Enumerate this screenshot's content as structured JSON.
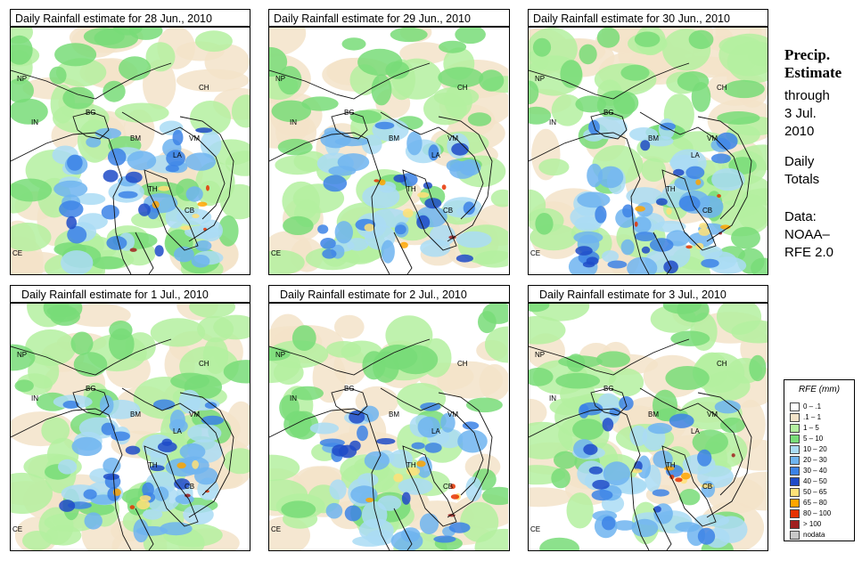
{
  "panels": [
    {
      "title": "Daily Rainfall estimate for  28 Jun., 2010",
      "rain_level": 0.55
    },
    {
      "title": "Daily Rainfall estimate for  29 Jun., 2010",
      "rain_level": 0.5
    },
    {
      "title": "Daily Rainfall estimate for  30 Jun., 2010",
      "rain_level": 0.8
    },
    {
      "title": "Daily Rainfall estimate for  1 Jul., 2010",
      "rain_level": 0.65
    },
    {
      "title": "Daily Rainfall estimate for  2 Jul., 2010",
      "rain_level": 0.45
    },
    {
      "title": "Daily Rainfall estimate for  3 Jul., 2010",
      "rain_level": 0.55
    }
  ],
  "country_labels": [
    "NP",
    "CH",
    "IN",
    "BG",
    "BM",
    "VM",
    "LA",
    "TH",
    "CB",
    "CE"
  ],
  "side_panel": {
    "heading_line1": "Precip.",
    "heading_line2": "Estimate",
    "through": "through",
    "date_line1": "3 Jul.",
    "date_line2": "2010",
    "daily_line1": "Daily",
    "daily_line2": "Totals",
    "data_line1": "Data:",
    "data_line2": "NOAA–",
    "data_line3": "RFE 2.0"
  },
  "legend": {
    "title": "RFE (mm)",
    "items": [
      {
        "label": "0 – .1",
        "color": "#ffffff"
      },
      {
        "label": ".1 – 1",
        "color": "#f3e3c9"
      },
      {
        "label": "1 – 5",
        "color": "#b4f0a0"
      },
      {
        "label": "5 – 10",
        "color": "#78dc78"
      },
      {
        "label": "10 – 20",
        "color": "#aadcf5"
      },
      {
        "label": "20 – 30",
        "color": "#6eb4f0"
      },
      {
        "label": "30 – 40",
        "color": "#3c82e6"
      },
      {
        "label": "40 – 50",
        "color": "#1e4bc8"
      },
      {
        "label": "50 – 65",
        "color": "#ffe178"
      },
      {
        "label": "65 – 80",
        "color": "#ffa500"
      },
      {
        "label": "80 – 100",
        "color": "#e63200"
      },
      {
        "label": "> 100",
        "color": "#a01e1e"
      },
      {
        "label": "nodata",
        "color": "#c8c8c8"
      }
    ]
  }
}
